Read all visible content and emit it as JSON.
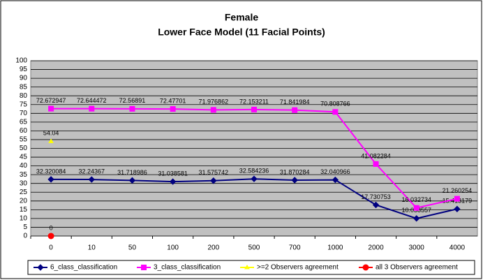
{
  "chart_data": {
    "type": "line",
    "title": "Female",
    "subtitle": "Lower Face Model (11 Facial Points)",
    "categories": [
      "0",
      "10",
      "50",
      "100",
      "200",
      "500",
      "700",
      "1000",
      "2000",
      "3000",
      "4000"
    ],
    "series": [
      {
        "name": "6_class_classification",
        "color": "#000080",
        "marker": "diamond",
        "values": [
          32.320084,
          32.24367,
          31.718986,
          31.038581,
          31.575742,
          32.584236,
          31.870284,
          32.040966,
          17.730753,
          10.038557,
          15.413179
        ]
      },
      {
        "name": "3_class_classification",
        "color": "#ff00ff",
        "marker": "square",
        "values": [
          72.672947,
          72.644472,
          72.56891,
          72.47701,
          71.976862,
          72.153211,
          71.841984,
          70.808766,
          41.082284,
          16.032734,
          21.260254
        ]
      },
      {
        "name": ">=2 Observers agreement",
        "color": "#ffff00",
        "marker": "triangle",
        "values": [
          54.04,
          null,
          null,
          null,
          null,
          null,
          null,
          null,
          null,
          null,
          null
        ]
      },
      {
        "name": "all 3 Observers agreement",
        "color": "#ff0000",
        "marker": "circle",
        "values": [
          0,
          null,
          null,
          null,
          null,
          null,
          null,
          null,
          null,
          null,
          null
        ]
      }
    ],
    "ylim": [
      0,
      100
    ],
    "yticks": [
      0,
      5,
      10,
      15,
      20,
      25,
      30,
      35,
      40,
      45,
      50,
      55,
      60,
      65,
      70,
      75,
      80,
      85,
      90,
      95,
      100
    ],
    "grid": true,
    "legend": "bottom"
  }
}
